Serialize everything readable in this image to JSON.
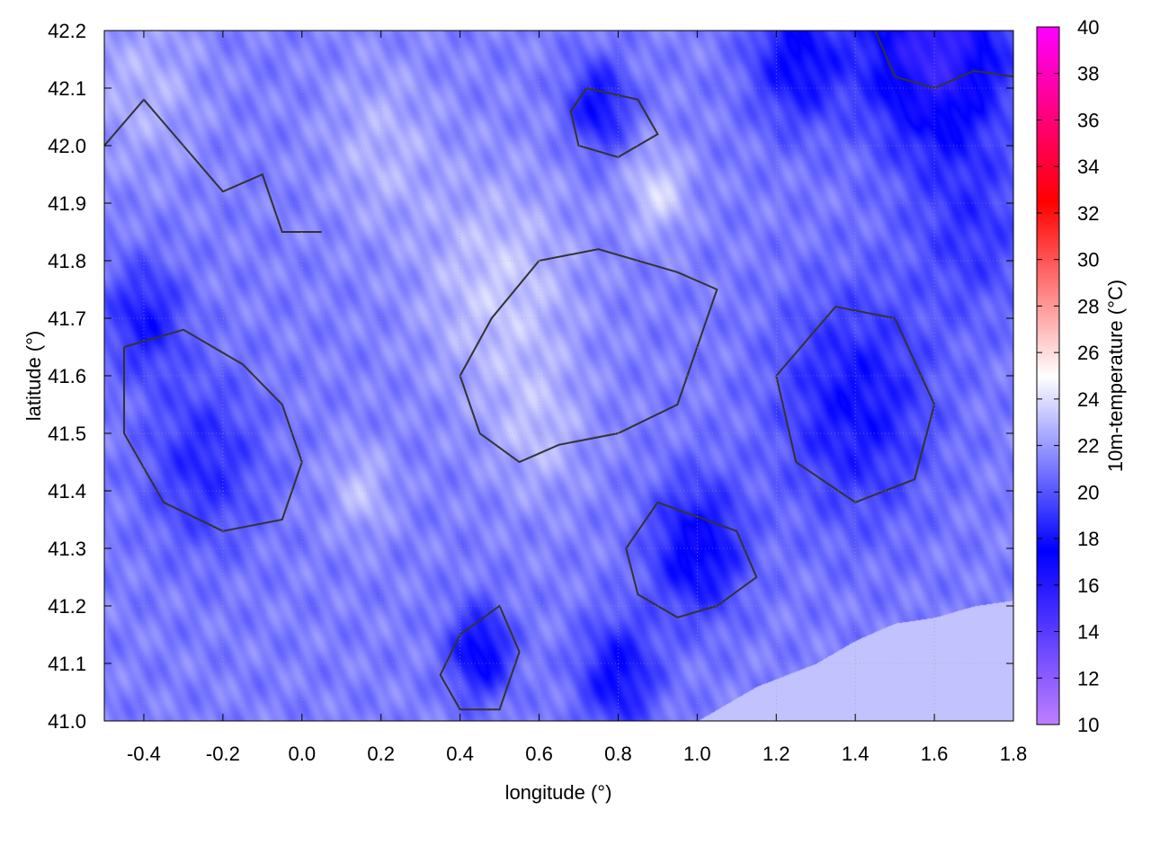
{
  "chart_data": {
    "type": "heatmap",
    "xlabel": "longitude (°)",
    "ylabel": "latitude (°)",
    "colorbar_label": "10m-temperature (°C)",
    "xlim": [
      -0.5,
      1.8
    ],
    "ylim": [
      41.0,
      42.2
    ],
    "xticks": [
      "-0.4",
      "-0.2",
      "0.0",
      "0.2",
      "0.4",
      "0.6",
      "0.8",
      "1.0",
      "1.2",
      "1.4",
      "1.6",
      "1.8"
    ],
    "xtick_values": [
      -0.4,
      -0.2,
      0.0,
      0.2,
      0.4,
      0.6,
      0.8,
      1.0,
      1.2,
      1.4,
      1.6,
      1.8
    ],
    "yticks": [
      "41.0",
      "41.1",
      "41.2",
      "41.3",
      "41.4",
      "41.5",
      "41.6",
      "41.7",
      "41.8",
      "41.9",
      "42.0",
      "42.1",
      "42.2"
    ],
    "ytick_values": [
      41.0,
      41.1,
      41.2,
      41.3,
      41.4,
      41.5,
      41.6,
      41.7,
      41.8,
      41.9,
      42.0,
      42.1,
      42.2
    ],
    "cbar_range": [
      10,
      40
    ],
    "cbar_ticks": [
      "10",
      "12",
      "14",
      "16",
      "18",
      "20",
      "22",
      "24",
      "26",
      "28",
      "30",
      "32",
      "34",
      "36",
      "38",
      "40"
    ],
    "cbar_tick_values": [
      10,
      12,
      14,
      16,
      18,
      20,
      22,
      24,
      26,
      28,
      30,
      32,
      34,
      36,
      38,
      40
    ],
    "colormap": [
      [
        10,
        "#c080ff"
      ],
      [
        17.5,
        "#0000ff"
      ],
      [
        25,
        "#ffffff"
      ],
      [
        32.5,
        "#ff0000"
      ],
      [
        40,
        "#ff00ff"
      ]
    ],
    "grid": true,
    "base_temperature": 21.2,
    "field_features": [
      {
        "lon": 1.6,
        "lat": 42.17,
        "dT": -6,
        "r": 0.18
      },
      {
        "lon": 1.25,
        "lat": 42.15,
        "dT": -3.5,
        "r": 0.12
      },
      {
        "lon": 0.75,
        "lat": 42.07,
        "dT": -3.5,
        "r": 0.08
      },
      {
        "lon": 1.4,
        "lat": 41.55,
        "dT": -3.2,
        "r": 0.2
      },
      {
        "lon": 1.0,
        "lat": 41.3,
        "dT": -4,
        "r": 0.12
      },
      {
        "lon": 0.45,
        "lat": 41.12,
        "dT": -4,
        "r": 0.08
      },
      {
        "lon": 0.8,
        "lat": 41.08,
        "dT": -3.5,
        "r": 0.1
      },
      {
        "lon": -0.25,
        "lat": 41.45,
        "dT": -2.5,
        "r": 0.15
      },
      {
        "lon": -0.4,
        "lat": 41.7,
        "dT": -3,
        "r": 0.1
      },
      {
        "lon": 1.7,
        "lat": 41.85,
        "dT": -2,
        "r": 0.15
      },
      {
        "lon": 0.5,
        "lat": 41.75,
        "dT": 2.2,
        "r": 0.2
      },
      {
        "lon": 0.9,
        "lat": 41.92,
        "dT": 2.5,
        "r": 0.08
      },
      {
        "lon": 0.15,
        "lat": 41.4,
        "dT": 1.8,
        "r": 0.08
      },
      {
        "lon": -0.4,
        "lat": 42.1,
        "dT": 1.5,
        "r": 0.15
      },
      {
        "lon": 0.2,
        "lat": 42.0,
        "dT": 1.5,
        "r": 0.15
      },
      {
        "lon": 0.6,
        "lat": 41.5,
        "dT": 1.5,
        "r": 0.12
      }
    ],
    "sea_region": {
      "temperature": 23.2,
      "boundary": [
        [
          1.0,
          41.0
        ],
        [
          1.15,
          41.06
        ],
        [
          1.3,
          41.1
        ],
        [
          1.4,
          41.14
        ],
        [
          1.5,
          41.17
        ],
        [
          1.6,
          41.18
        ],
        [
          1.7,
          41.2
        ],
        [
          1.8,
          41.21
        ],
        [
          1.8,
          41.0
        ]
      ]
    },
    "contours": [
      [
        [
          0.6,
          41.8
        ],
        [
          0.75,
          41.82
        ],
        [
          0.95,
          41.78
        ],
        [
          1.05,
          41.75
        ],
        [
          1.0,
          41.65
        ],
        [
          0.95,
          41.55
        ],
        [
          0.8,
          41.5
        ],
        [
          0.65,
          41.48
        ],
        [
          0.55,
          41.45
        ],
        [
          0.45,
          41.5
        ],
        [
          0.4,
          41.6
        ],
        [
          0.48,
          41.7
        ],
        [
          0.6,
          41.8
        ]
      ],
      [
        [
          0.9,
          41.38
        ],
        [
          1.1,
          41.33
        ],
        [
          1.15,
          41.25
        ],
        [
          1.05,
          41.2
        ],
        [
          0.95,
          41.18
        ],
        [
          0.85,
          41.22
        ],
        [
          0.82,
          41.3
        ],
        [
          0.9,
          41.38
        ]
      ],
      [
        [
          -0.45,
          41.65
        ],
        [
          -0.3,
          41.68
        ],
        [
          -0.15,
          41.62
        ],
        [
          -0.05,
          41.55
        ],
        [
          0.0,
          41.45
        ],
        [
          -0.05,
          41.35
        ],
        [
          -0.2,
          41.33
        ],
        [
          -0.35,
          41.38
        ],
        [
          -0.45,
          41.5
        ],
        [
          -0.45,
          41.65
        ]
      ],
      [
        [
          0.4,
          41.15
        ],
        [
          0.5,
          41.2
        ],
        [
          0.55,
          41.12
        ],
        [
          0.5,
          41.02
        ],
        [
          0.4,
          41.02
        ],
        [
          0.35,
          41.08
        ],
        [
          0.4,
          41.15
        ]
      ],
      [
        [
          1.2,
          41.6
        ],
        [
          1.35,
          41.72
        ],
        [
          1.5,
          41.7
        ],
        [
          1.6,
          41.55
        ],
        [
          1.55,
          41.42
        ],
        [
          1.4,
          41.38
        ],
        [
          1.25,
          41.45
        ],
        [
          1.2,
          41.6
        ]
      ],
      [
        [
          1.45,
          42.2
        ],
        [
          1.5,
          42.12
        ],
        [
          1.6,
          42.1
        ],
        [
          1.7,
          42.13
        ],
        [
          1.8,
          42.12
        ]
      ],
      [
        [
          0.72,
          42.1
        ],
        [
          0.85,
          42.08
        ],
        [
          0.9,
          42.02
        ],
        [
          0.8,
          41.98
        ],
        [
          0.7,
          42.0
        ],
        [
          0.68,
          42.06
        ],
        [
          0.72,
          42.1
        ]
      ],
      [
        [
          -0.5,
          42.0
        ],
        [
          -0.4,
          42.08
        ],
        [
          -0.3,
          42.0
        ],
        [
          -0.2,
          41.92
        ],
        [
          -0.1,
          41.95
        ],
        [
          -0.05,
          41.85
        ],
        [
          0.05,
          41.85
        ]
      ]
    ]
  }
}
